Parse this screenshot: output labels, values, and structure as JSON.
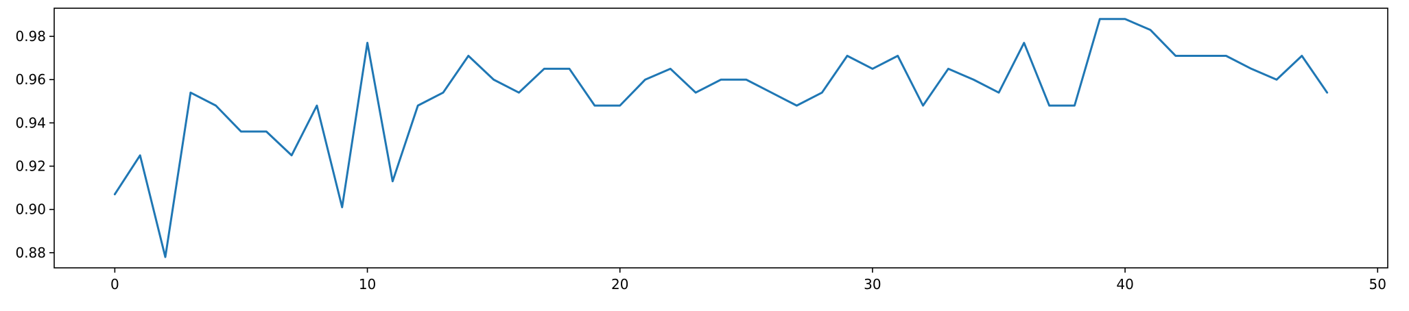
{
  "chart_data": {
    "type": "line",
    "title": "",
    "xlabel": "",
    "ylabel": "",
    "xlim": [
      -2.4,
      50.4
    ],
    "ylim": [
      0.873,
      0.993
    ],
    "grid": false,
    "legend": "none",
    "x_ticks": [
      0,
      10,
      20,
      30,
      40,
      50
    ],
    "y_ticks": [
      0.88,
      0.9,
      0.92,
      0.94,
      0.96,
      0.98
    ],
    "x_tick_labels": [
      "0",
      "10",
      "20",
      "30",
      "40",
      "50"
    ],
    "y_tick_labels": [
      "0.88",
      "0.90",
      "0.92",
      "0.94",
      "0.96",
      "0.98"
    ],
    "series": [
      {
        "color": "#1f77b4",
        "x": [
          0,
          1,
          2,
          3,
          4,
          5,
          6,
          7,
          8,
          9,
          10,
          11,
          12,
          13,
          14,
          15,
          16,
          17,
          18,
          19,
          20,
          21,
          22,
          23,
          24,
          25,
          26,
          27,
          28,
          29,
          30,
          31,
          32,
          33,
          34,
          35,
          36,
          37,
          38,
          39,
          40,
          41,
          42,
          43,
          44,
          45,
          46,
          47,
          48
        ],
        "values": [
          0.907,
          0.925,
          0.878,
          0.954,
          0.948,
          0.936,
          0.936,
          0.925,
          0.948,
          0.901,
          0.977,
          0.913,
          0.948,
          0.954,
          0.971,
          0.96,
          0.954,
          0.965,
          0.965,
          0.948,
          0.948,
          0.96,
          0.965,
          0.954,
          0.96,
          0.96,
          0.954,
          0.948,
          0.954,
          0.971,
          0.965,
          0.971,
          0.948,
          0.965,
          0.96,
          0.954,
          0.977,
          0.948,
          0.948,
          0.988,
          0.988,
          0.983,
          0.971,
          0.971,
          0.971,
          0.965,
          0.96,
          0.971,
          0.954
        ]
      }
    ]
  }
}
